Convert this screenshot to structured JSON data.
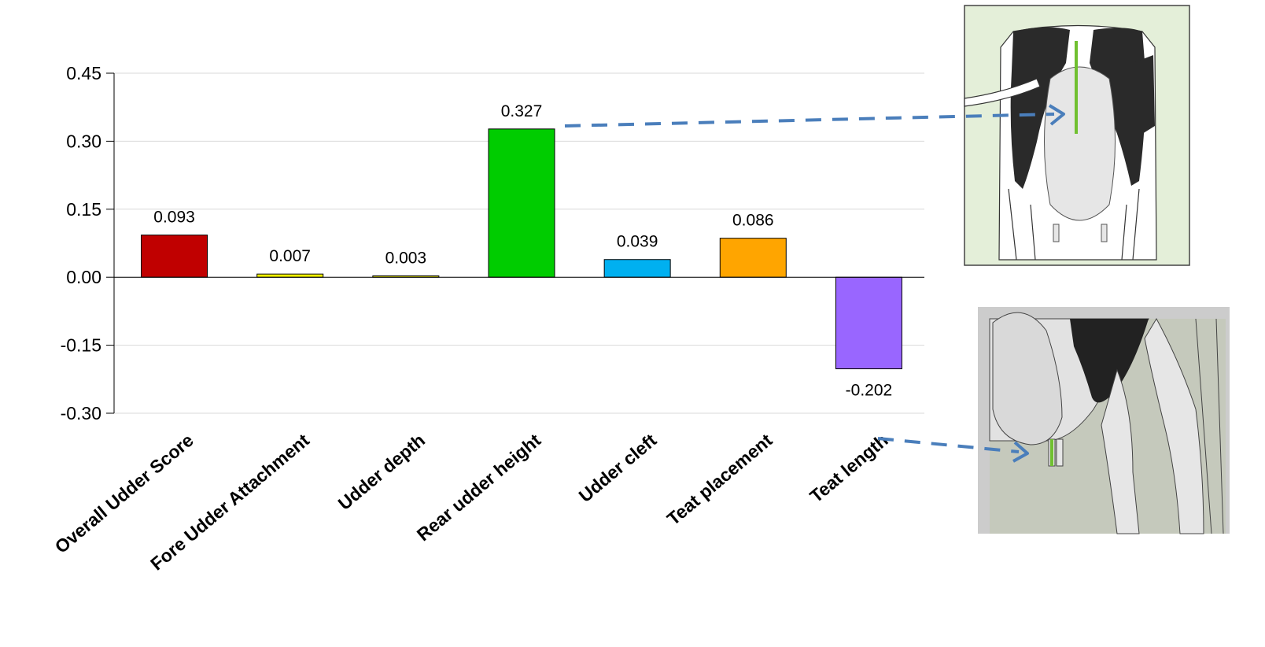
{
  "chart_data": {
    "type": "bar",
    "categories": [
      "Overall Udder Score",
      "Fore Udder Attachment",
      "Udder depth",
      "Rear udder height",
      "Udder cleft",
      "Teat placement",
      "Teat length"
    ],
    "values": [
      0.093,
      0.007,
      0.003,
      0.327,
      0.039,
      0.086,
      -0.202
    ],
    "value_labels": [
      "0.093",
      "0.007",
      "0.003",
      "0.327",
      "0.039",
      "0.086",
      "-0.202"
    ],
    "colors": [
      "#c00000",
      "#ffff00",
      "#ffff00",
      "#00cc00",
      "#00b0f0",
      "#ffa500",
      "#9966ff"
    ],
    "yticks": [
      "0.45",
      "0.30",
      "0.15",
      "0.00",
      "-0.15",
      "-0.30"
    ],
    "ytick_values": [
      0.45,
      0.3,
      0.15,
      0.0,
      -0.15,
      -0.3
    ],
    "ylim": [
      -0.3,
      0.45
    ],
    "grid": true,
    "title": "",
    "xlabel": "",
    "ylabel": ""
  },
  "annotations": {
    "arrow_color": "#4a7ebb",
    "highlight_color": "#70c030",
    "illustrations": [
      "cow-rear-view-illustration",
      "cow-side-teat-illustration"
    ]
  }
}
